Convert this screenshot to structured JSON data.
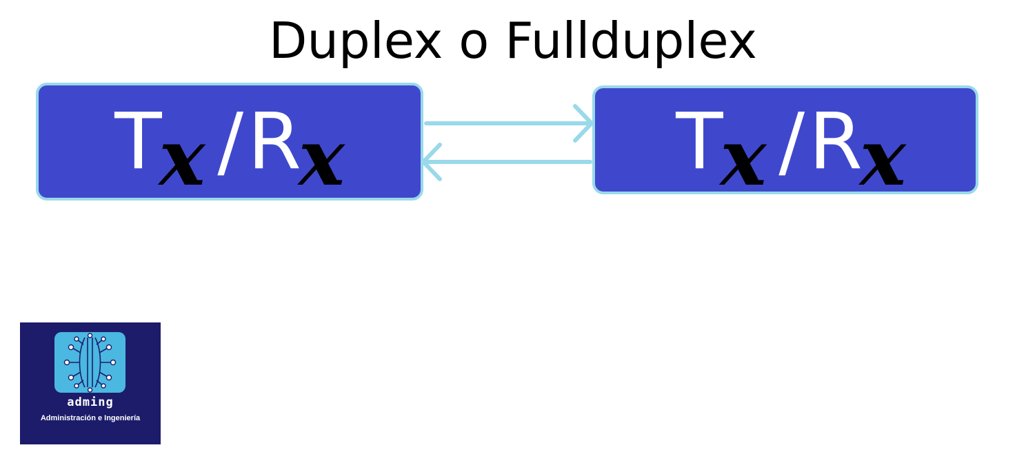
{
  "title": "Duplex o Fullduplex",
  "nodes": [
    {
      "main_t": "T",
      "sub_t": "x",
      "slash": "/",
      "main_r": "R",
      "sub_r": "x"
    },
    {
      "main_t": "T",
      "sub_t": "x",
      "slash": "/",
      "main_r": "R",
      "sub_r": "x"
    }
  ],
  "logo": {
    "brand": "adming",
    "tagline": "Administración e Ingeniería",
    "icon": "circuit-icon"
  },
  "colors": {
    "node_fill": "#3f48cc",
    "node_border": "#99d9ea",
    "arrow": "#99d9ea",
    "logo_bg": "#1c1c6b",
    "logo_tile": "#4ab8e0"
  }
}
